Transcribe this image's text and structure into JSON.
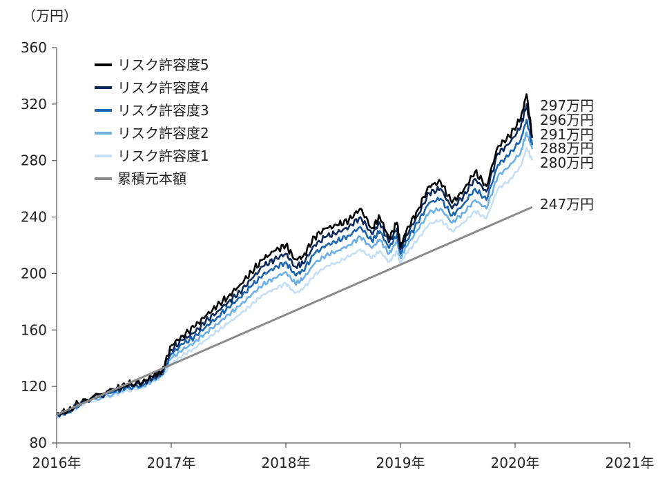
{
  "chart_data": {
    "type": "line",
    "unit_label": "（万円）",
    "x_ticks": [
      "2016年",
      "2017年",
      "2018年",
      "2019年",
      "2020年",
      "2021年"
    ],
    "x_range": [
      2016,
      2021
    ],
    "ylim": [
      80,
      360
    ],
    "y_ticks": [
      80,
      120,
      160,
      200,
      240,
      280,
      320,
      360
    ],
    "grid": false,
    "legend_position": "top-left",
    "anchor_x": [
      2016.0,
      2016.1,
      2016.25,
      2016.5,
      2016.6,
      2016.75,
      2016.85,
      2016.92,
      2017.0,
      2017.1,
      2017.2,
      2017.3,
      2017.4,
      2017.5,
      2017.6,
      2017.7,
      2017.8,
      2017.9,
      2018.0,
      2018.08,
      2018.15,
      2018.25,
      2018.35,
      2018.45,
      2018.55,
      2018.65,
      2018.75,
      2018.82,
      2018.9,
      2018.97,
      2019.0,
      2019.05,
      2019.15,
      2019.25,
      2019.35,
      2019.45,
      2019.55,
      2019.65,
      2019.75,
      2019.85,
      2019.95,
      2020.05,
      2020.1,
      2020.15
    ],
    "series": [
      {
        "name": "リスク許容度5",
        "color": "#000000",
        "end_label": "297万円",
        "values": [
          100,
          103,
          111,
          118,
          121,
          123,
          128,
          131,
          149,
          156,
          162,
          170,
          177,
          184,
          192,
          201,
          210,
          216,
          220,
          210,
          212,
          226,
          232,
          234,
          238,
          246,
          232,
          240,
          225,
          236,
          219,
          230,
          245,
          262,
          265,
          250,
          259,
          272,
          262,
          290,
          297,
          310,
          327,
          297
        ]
      },
      {
        "name": "リスク許容度4",
        "color": "#0a2a5c",
        "end_label": "296万円",
        "values": [
          100,
          102,
          110,
          117,
          120,
          122,
          127,
          130,
          146,
          153,
          158,
          166,
          173,
          180,
          187,
          196,
          205,
          210,
          214,
          205,
          207,
          220,
          226,
          229,
          233,
          240,
          228,
          236,
          222,
          232,
          217,
          227,
          241,
          257,
          260,
          246,
          255,
          267,
          258,
          285,
          292,
          304,
          320,
          296
        ]
      },
      {
        "name": "リスク許容度3",
        "color": "#1a65ae",
        "end_label": "291万円",
        "values": [
          100,
          102,
          110,
          116,
          119,
          121,
          126,
          129,
          143,
          150,
          155,
          162,
          169,
          176,
          183,
          191,
          199,
          204,
          208,
          199,
          202,
          214,
          220,
          223,
          227,
          233,
          223,
          230,
          218,
          228,
          214,
          223,
          236,
          250,
          253,
          241,
          249,
          260,
          252,
          277,
          284,
          295,
          309,
          291
        ]
      },
      {
        "name": "リスク許容度2",
        "color": "#6cb0e6",
        "end_label": "288万円",
        "values": [
          100,
          101,
          109,
          115,
          118,
          120,
          125,
          128,
          140,
          146,
          151,
          158,
          164,
          171,
          177,
          185,
          192,
          197,
          201,
          193,
          196,
          207,
          213,
          216,
          220,
          226,
          218,
          224,
          214,
          223,
          211,
          219,
          231,
          243,
          246,
          236,
          243,
          252,
          246,
          269,
          276,
          286,
          300,
          288
        ]
      },
      {
        "name": "リスク許容度1",
        "color": "#c6dff5",
        "end_label": "280万円",
        "values": [
          100,
          101,
          108,
          114,
          117,
          119,
          124,
          127,
          136,
          142,
          147,
          153,
          159,
          165,
          171,
          178,
          185,
          189,
          193,
          186,
          189,
          199,
          205,
          208,
          212,
          217,
          211,
          216,
          208,
          216,
          207,
          214,
          224,
          235,
          238,
          230,
          236,
          244,
          239,
          260,
          266,
          276,
          289,
          280
        ]
      },
      {
        "name": "累積元本額",
        "color": "#8a8a8a",
        "end_label": "247万円",
        "values": [
          100,
          103,
          107.5,
          115,
          118,
          122.5,
          126,
          127.5,
          129,
          132.5,
          137,
          141,
          144,
          147,
          151,
          154,
          158,
          161,
          165,
          167,
          169,
          172,
          175,
          178,
          182,
          185,
          188,
          190,
          192,
          195,
          196,
          198,
          201,
          204,
          207,
          210,
          213,
          216,
          219,
          222,
          225,
          228,
          230,
          247
        ]
      }
    ]
  }
}
